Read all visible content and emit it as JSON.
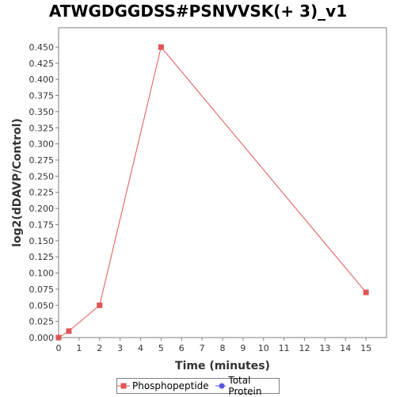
{
  "chart_data": {
    "type": "line",
    "title": "ATWGDGGDSS#PSNVVSK(+ 3)_v1",
    "xlabel": "Time (minutes)",
    "ylabel": "log2(dDAVP/Control)",
    "xlim": [
      0,
      16
    ],
    "ylim": [
      0.0,
      0.48
    ],
    "x_ticks": [
      "0",
      "1",
      "2",
      "3",
      "4",
      "5",
      "6",
      "7",
      "8",
      "9",
      "10",
      "11",
      "12",
      "13",
      "14",
      "15"
    ],
    "y_ticks": [
      "0.000",
      "0.025",
      "0.050",
      "0.075",
      "0.100",
      "0.125",
      "0.150",
      "0.175",
      "0.200",
      "0.225",
      "0.250",
      "0.275",
      "0.300",
      "0.325",
      "0.350",
      "0.375",
      "0.400",
      "0.425",
      "0.450"
    ],
    "grid": false,
    "legend_position": "bottom",
    "series": [
      {
        "name": "Phosphopeptide",
        "color": "#e05555",
        "marker": "square",
        "x": [
          0,
          0.5,
          2,
          5,
          15
        ],
        "y": [
          0.0,
          0.01,
          0.05,
          0.45,
          0.07
        ]
      },
      {
        "name": "Total Protein",
        "color": "#5555e0",
        "marker": "circle",
        "x": [],
        "y": []
      }
    ]
  }
}
